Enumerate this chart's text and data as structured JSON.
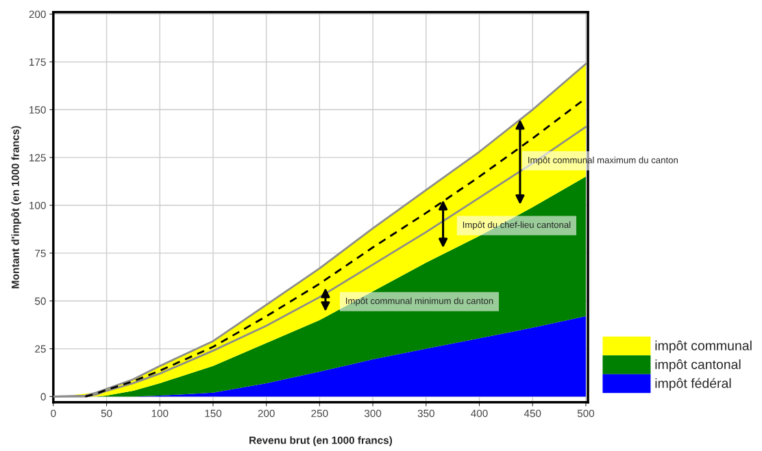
{
  "chart_data": {
    "type": "area",
    "stacked": true,
    "xlabel": "Revenu brut (en 1000 francs)",
    "ylabel": "Montant d'impôt (en 1000 francs)",
    "x": [
      20,
      40,
      50,
      75,
      100,
      150,
      200,
      250,
      300,
      350,
      400,
      450,
      500
    ],
    "series": [
      {
        "name": "impôt fédéral",
        "color": "#0000ff",
        "values": [
          0,
          0,
          0,
          0,
          0.5,
          2,
          7,
          13,
          19.5,
          25,
          30.5,
          36,
          42
        ]
      },
      {
        "name": "impôt cantonal",
        "color": "#008000",
        "values": [
          0,
          0,
          0.5,
          3,
          6.5,
          14,
          21,
          27,
          35.5,
          45,
          53.5,
          63,
          73
        ]
      },
      {
        "name": "impôt communal",
        "color": "#ffff00",
        "values": [
          1,
          2,
          3.5,
          6,
          9,
          13,
          20,
          27,
          33,
          38,
          44,
          51,
          59
        ]
      },
      {
        "type": "line",
        "color": "#8c8c8c",
        "x": [
          0,
          30,
          40,
          50,
          75,
          100,
          150,
          200,
          250,
          300,
          350,
          400,
          450,
          500
        ],
        "values": [
          0,
          0.5,
          2,
          4,
          9,
          16,
          29,
          48,
          67,
          88,
          108,
          128,
          150,
          174
        ]
      },
      {
        "type": "line",
        "color": "#8c8c8c",
        "x": [
          0,
          30,
          40,
          50,
          75,
          100,
          150,
          200,
          250,
          300,
          350,
          400,
          450,
          500
        ],
        "values": [
          0,
          0,
          1,
          3,
          7,
          12,
          24,
          37,
          52,
          69,
          86,
          104,
          122,
          141
        ]
      },
      {
        "type": "line",
        "color": "#000000",
        "line_style": "dashed",
        "x": [
          30,
          40,
          50,
          75,
          100,
          150,
          200,
          250,
          300,
          350,
          400,
          450,
          500
        ],
        "values": [
          0,
          1.5,
          3.5,
          8,
          13.5,
          26,
          42,
          59,
          78,
          96,
          115,
          135,
          156
        ]
      }
    ],
    "annotations": [
      "Impôt communal maximum du canton",
      "Impôt du chef-lieu cantonal",
      "Impôt communal minimum du canton"
    ],
    "xlim": [
      0,
      502
    ],
    "ylim": [
      -3,
      201
    ],
    "xticks": [
      0,
      50,
      100,
      150,
      200,
      250,
      300,
      350,
      400,
      450,
      500
    ],
    "yticks": [
      0,
      25,
      50,
      75,
      100,
      125,
      150,
      175,
      200
    ],
    "grid": true,
    "legend": "bottom right"
  }
}
